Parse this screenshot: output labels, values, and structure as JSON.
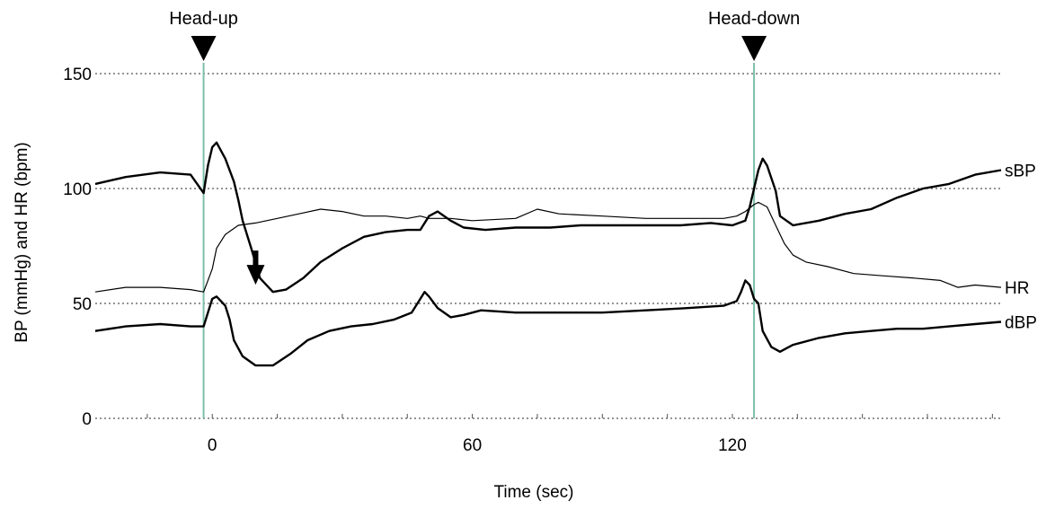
{
  "chart_data": {
    "type": "line",
    "title": "",
    "xlabel": "Time (sec)",
    "ylabel": "BP (mmHg) and HR (bpm)",
    "xlim": [
      -27,
      182
    ],
    "ylim": [
      0,
      150
    ],
    "x_ticks": [
      0,
      60,
      120
    ],
    "y_ticks": [
      0,
      50,
      100,
      150
    ],
    "grid": "horizontal dotted at y ticks",
    "events": [
      {
        "label": "Head-up",
        "x": -2
      },
      {
        "label": "Head-down",
        "x": 125
      }
    ],
    "annotations": [
      {
        "type": "down-arrow",
        "x": 10,
        "y": 73
      }
    ],
    "colors": {
      "series": "#000000",
      "event_line": "#7dbfa6",
      "grid": "#555555",
      "axis": "#555555"
    },
    "series": [
      {
        "name": "sBP",
        "points": [
          [
            -27,
            102
          ],
          [
            -20,
            105
          ],
          [
            -12,
            107
          ],
          [
            -5,
            106
          ],
          [
            -2,
            98
          ],
          [
            -1,
            110
          ],
          [
            0,
            118
          ],
          [
            1,
            120
          ],
          [
            3,
            113
          ],
          [
            5,
            103
          ],
          [
            6,
            95
          ],
          [
            7,
            86
          ],
          [
            9,
            74
          ],
          [
            11,
            61
          ],
          [
            14,
            55
          ],
          [
            17,
            56
          ],
          [
            21,
            61
          ],
          [
            25,
            68
          ],
          [
            30,
            74
          ],
          [
            35,
            79
          ],
          [
            40,
            81
          ],
          [
            45,
            82
          ],
          [
            48,
            82
          ],
          [
            50,
            88
          ],
          [
            52,
            90
          ],
          [
            55,
            86
          ],
          [
            58,
            83
          ],
          [
            63,
            82
          ],
          [
            70,
            83
          ],
          [
            78,
            83
          ],
          [
            85,
            84
          ],
          [
            92,
            84
          ],
          [
            100,
            84
          ],
          [
            108,
            84
          ],
          [
            115,
            85
          ],
          [
            120,
            84
          ],
          [
            123,
            86
          ],
          [
            124,
            92
          ],
          [
            125,
            100
          ],
          [
            126,
            108
          ],
          [
            127,
            113
          ],
          [
            128,
            110
          ],
          [
            130,
            99
          ],
          [
            131,
            88
          ],
          [
            134,
            84
          ],
          [
            140,
            86
          ],
          [
            146,
            89
          ],
          [
            152,
            91
          ],
          [
            158,
            96
          ],
          [
            164,
            100
          ],
          [
            170,
            102
          ],
          [
            176,
            106
          ],
          [
            182,
            108
          ]
        ]
      },
      {
        "name": "HR",
        "points": [
          [
            -27,
            55
          ],
          [
            -20,
            57
          ],
          [
            -12,
            57
          ],
          [
            -5,
            56
          ],
          [
            -2,
            55
          ],
          [
            -1,
            60
          ],
          [
            0,
            65
          ],
          [
            1,
            74
          ],
          [
            3,
            80
          ],
          [
            6,
            84
          ],
          [
            10,
            85
          ],
          [
            15,
            87
          ],
          [
            20,
            89
          ],
          [
            25,
            91
          ],
          [
            30,
            90
          ],
          [
            35,
            88
          ],
          [
            40,
            88
          ],
          [
            45,
            87
          ],
          [
            48,
            88
          ],
          [
            50,
            87
          ],
          [
            55,
            87
          ],
          [
            60,
            86
          ],
          [
            70,
            87
          ],
          [
            75,
            91
          ],
          [
            80,
            89
          ],
          [
            90,
            88
          ],
          [
            100,
            87
          ],
          [
            110,
            87
          ],
          [
            118,
            87
          ],
          [
            121,
            88
          ],
          [
            123,
            90
          ],
          [
            125,
            93
          ],
          [
            126,
            94
          ],
          [
            128,
            92
          ],
          [
            130,
            84
          ],
          [
            132,
            76
          ],
          [
            134,
            71
          ],
          [
            137,
            68
          ],
          [
            142,
            66
          ],
          [
            148,
            63
          ],
          [
            155,
            62
          ],
          [
            162,
            61
          ],
          [
            168,
            60
          ],
          [
            172,
            57
          ],
          [
            176,
            58
          ],
          [
            182,
            57
          ]
        ]
      },
      {
        "name": "dBP",
        "points": [
          [
            -27,
            38
          ],
          [
            -20,
            40
          ],
          [
            -12,
            41
          ],
          [
            -5,
            40
          ],
          [
            -2,
            40
          ],
          [
            -1,
            46
          ],
          [
            0,
            52
          ],
          [
            1,
            53
          ],
          [
            2,
            51
          ],
          [
            3,
            49
          ],
          [
            4,
            43
          ],
          [
            5,
            34
          ],
          [
            7,
            27
          ],
          [
            10,
            23
          ],
          [
            14,
            23
          ],
          [
            18,
            28
          ],
          [
            22,
            34
          ],
          [
            27,
            38
          ],
          [
            32,
            40
          ],
          [
            37,
            41
          ],
          [
            42,
            43
          ],
          [
            46,
            46
          ],
          [
            49,
            55
          ],
          [
            50,
            53
          ],
          [
            52,
            48
          ],
          [
            55,
            44
          ],
          [
            58,
            45
          ],
          [
            62,
            47
          ],
          [
            70,
            46
          ],
          [
            80,
            46
          ],
          [
            90,
            46
          ],
          [
            100,
            47
          ],
          [
            110,
            48
          ],
          [
            118,
            49
          ],
          [
            121,
            51
          ],
          [
            122,
            55
          ],
          [
            123,
            60
          ],
          [
            124,
            58
          ],
          [
            125,
            52
          ],
          [
            126,
            50
          ],
          [
            127,
            38
          ],
          [
            129,
            31
          ],
          [
            131,
            29
          ],
          [
            134,
            32
          ],
          [
            140,
            35
          ],
          [
            146,
            37
          ],
          [
            152,
            38
          ],
          [
            158,
            39
          ],
          [
            164,
            39
          ],
          [
            170,
            40
          ],
          [
            176,
            41
          ],
          [
            182,
            42
          ]
        ]
      }
    ]
  }
}
